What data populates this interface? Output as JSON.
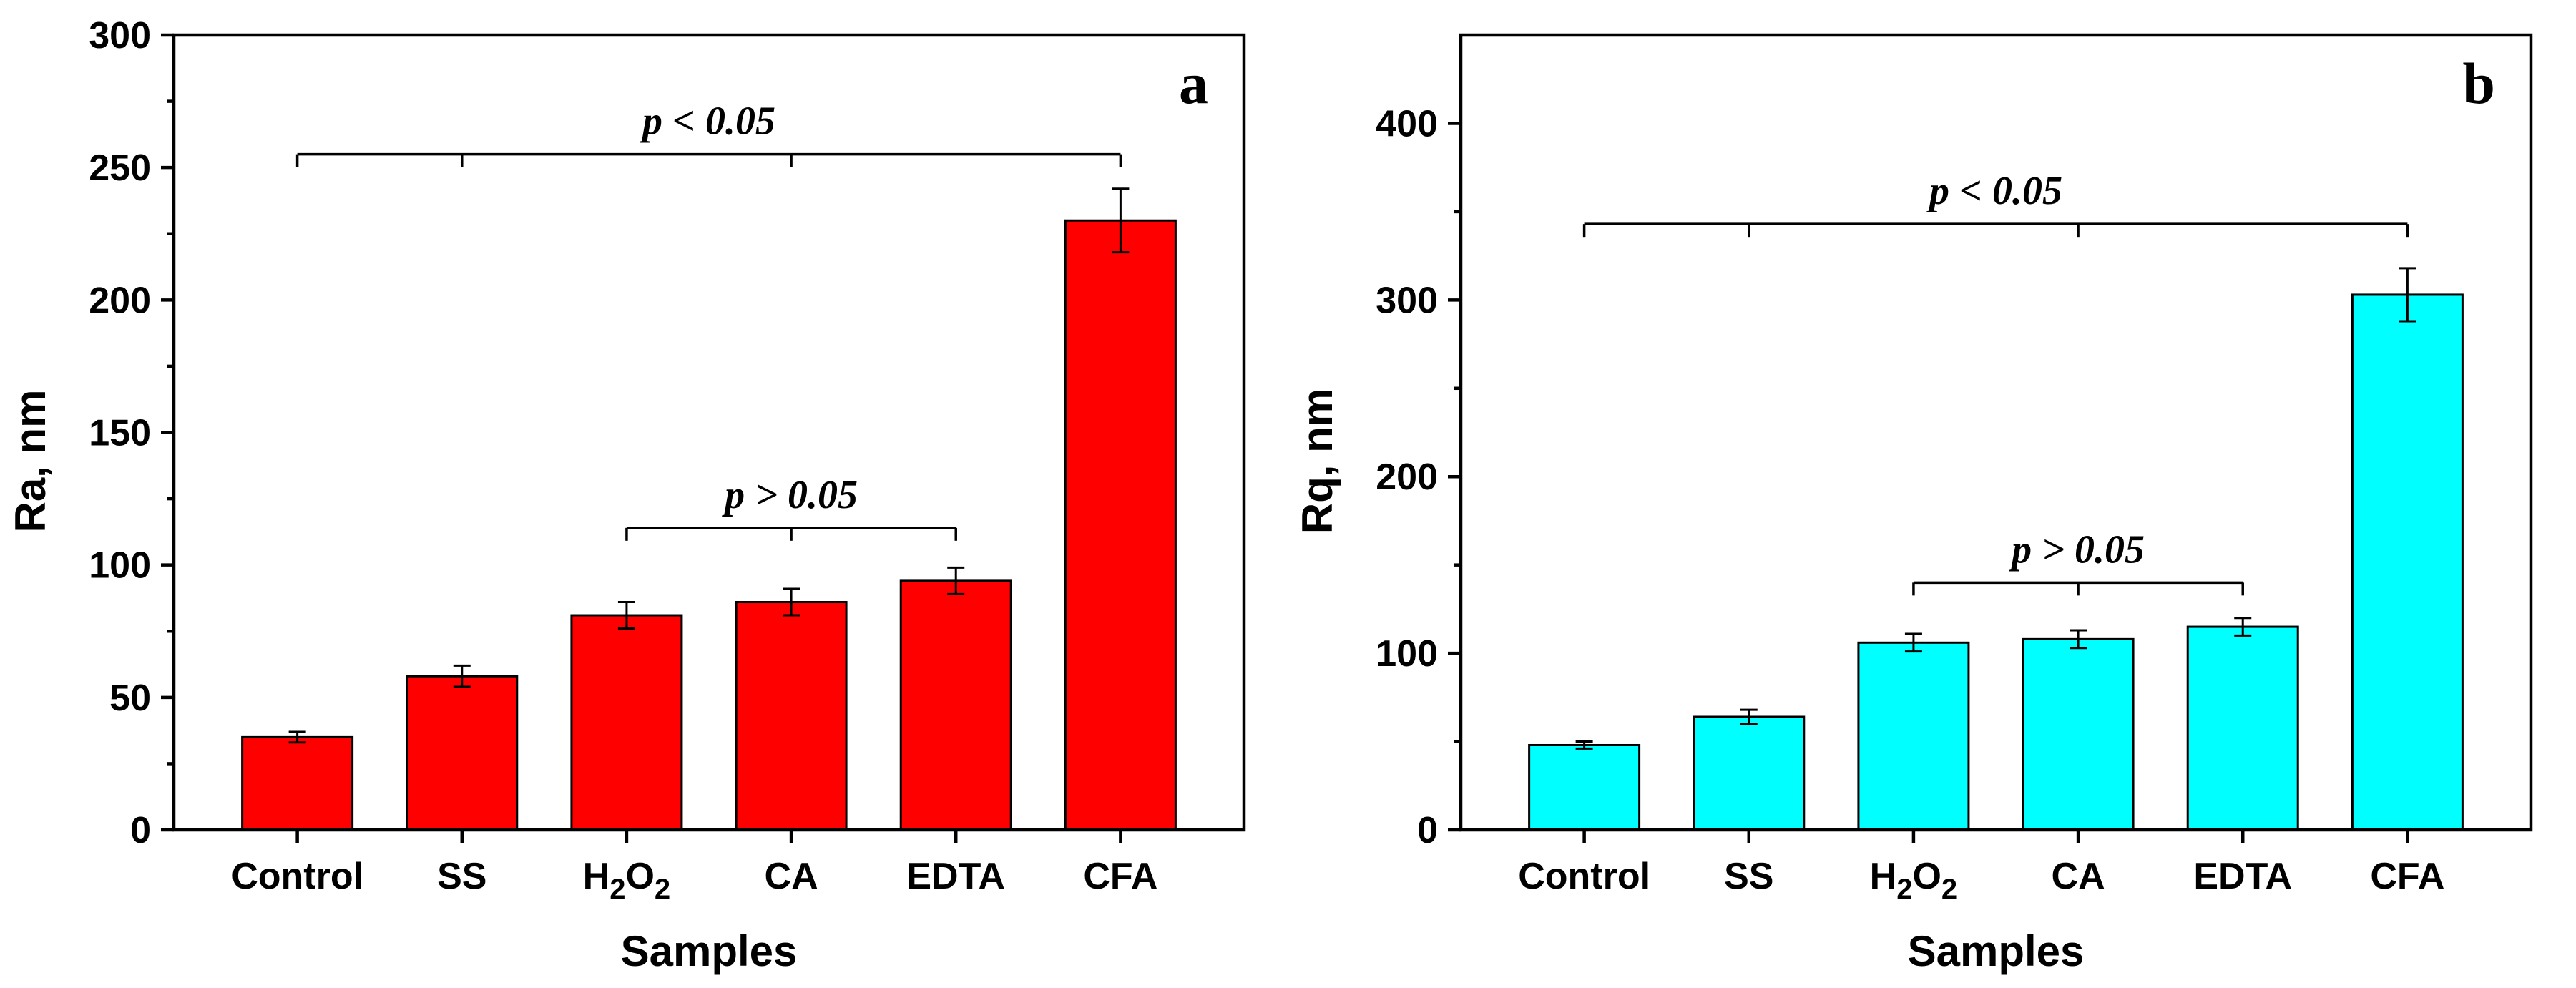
{
  "xlabel": "Samples",
  "categories": [
    "Control",
    "SS",
    "H2O2",
    "CA",
    "EDTA",
    "CFA"
  ],
  "category_parts": [
    [
      {
        "t": "Control"
      }
    ],
    [
      {
        "t": "SS"
      }
    ],
    [
      {
        "t": "H"
      },
      {
        "t": "2",
        "sub": true
      },
      {
        "t": "O"
      },
      {
        "t": "2",
        "sub": true
      }
    ],
    [
      {
        "t": "CA"
      }
    ],
    [
      {
        "t": "EDTA"
      }
    ],
    [
      {
        "t": "CFA"
      }
    ]
  ],
  "chart_data": [
    {
      "type": "bar",
      "panel": "a",
      "xlabel": "Samples",
      "ylabel": "Ra, nm",
      "categories": [
        "Control",
        "SS",
        "H2O2",
        "CA",
        "EDTA",
        "CFA"
      ],
      "values": [
        35,
        58,
        81,
        86,
        94,
        230
      ],
      "errors": [
        2,
        4,
        5,
        5,
        5,
        12
      ],
      "ylim": [
        0,
        300
      ],
      "yticks": [
        0,
        50,
        100,
        150,
        200,
        250,
        300
      ],
      "color": "#ff0000",
      "annotations": [
        {
          "text": "p < 0.05",
          "from": 0,
          "to": 5,
          "level": 255,
          "ticks": [
            0,
            1,
            3,
            5
          ]
        },
        {
          "text": "p > 0.05",
          "from": 2,
          "to": 4,
          "level": 114,
          "ticks": [
            2,
            3,
            4
          ]
        }
      ]
    },
    {
      "type": "bar",
      "panel": "b",
      "xlabel": "Samples",
      "ylabel": "Rq, nm",
      "categories": [
        "Control",
        "SS",
        "H2O2",
        "CA",
        "EDTA",
        "CFA"
      ],
      "values": [
        48,
        64,
        106,
        108,
        115,
        303
      ],
      "errors": [
        2,
        4,
        5,
        5,
        5,
        15
      ],
      "ylim": [
        0,
        450
      ],
      "yticks": [
        0,
        100,
        200,
        300,
        400
      ],
      "color": "#00ffff",
      "annotations": [
        {
          "text": "p < 0.05",
          "from": 0,
          "to": 5,
          "level": 343,
          "ticks": [
            0,
            1,
            3,
            5
          ]
        },
        {
          "text": "p > 0.05",
          "from": 2,
          "to": 4,
          "level": 140,
          "ticks": [
            2,
            3,
            4
          ]
        }
      ]
    }
  ]
}
